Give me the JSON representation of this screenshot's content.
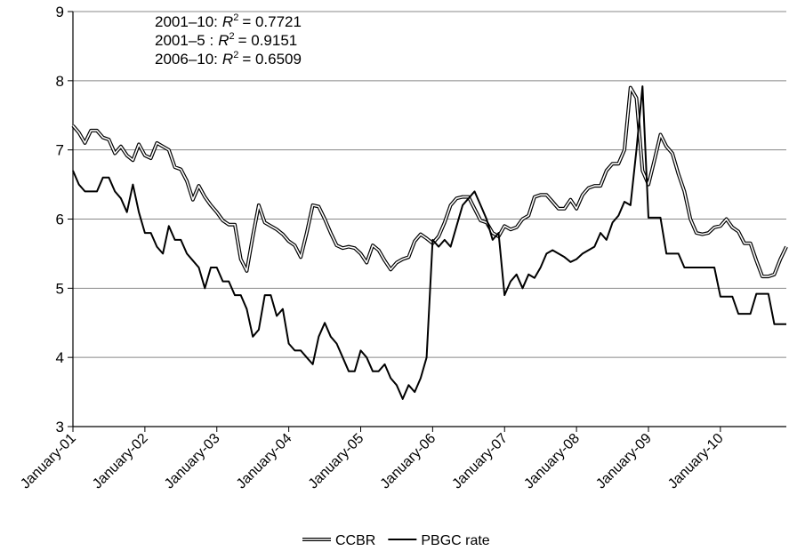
{
  "chart_data": {
    "type": "line",
    "categories": [
      "January-01",
      null,
      null,
      null,
      null,
      null,
      null,
      null,
      null,
      null,
      null,
      null,
      "January-02",
      null,
      null,
      null,
      null,
      null,
      null,
      null,
      null,
      null,
      null,
      null,
      "January-03",
      null,
      null,
      null,
      null,
      null,
      null,
      null,
      null,
      null,
      null,
      null,
      "January-04",
      null,
      null,
      null,
      null,
      null,
      null,
      null,
      null,
      null,
      null,
      null,
      "January-05",
      null,
      null,
      null,
      null,
      null,
      null,
      null,
      null,
      null,
      null,
      null,
      "January-06",
      null,
      null,
      null,
      null,
      null,
      null,
      null,
      null,
      null,
      null,
      null,
      "January-07",
      null,
      null,
      null,
      null,
      null,
      null,
      null,
      null,
      null,
      null,
      null,
      "January-08",
      null,
      null,
      null,
      null,
      null,
      null,
      null,
      null,
      null,
      null,
      null,
      "January-09",
      null,
      null,
      null,
      null,
      null,
      null,
      null,
      null,
      null,
      null,
      null,
      "January-10",
      null,
      null,
      null,
      null,
      null,
      null,
      null,
      null,
      null,
      null,
      null
    ],
    "series": [
      {
        "name": "CCBR",
        "color": "#000000",
        "style": "double",
        "values": [
          7.35,
          7.25,
          7.1,
          7.28,
          7.28,
          7.18,
          7.15,
          6.95,
          7.05,
          6.92,
          6.85,
          7.08,
          6.92,
          6.88,
          7.1,
          7.05,
          7.0,
          6.75,
          6.72,
          6.55,
          6.28,
          6.48,
          6.32,
          6.2,
          6.1,
          5.98,
          5.92,
          5.92,
          5.42,
          5.25,
          5.75,
          6.2,
          5.95,
          5.9,
          5.85,
          5.78,
          5.68,
          5.62,
          5.45,
          5.8,
          6.2,
          6.18,
          6.0,
          5.8,
          5.62,
          5.58,
          5.6,
          5.58,
          5.5,
          5.37,
          5.62,
          5.55,
          5.4,
          5.27,
          5.37,
          5.42,
          5.45,
          5.68,
          5.78,
          5.72,
          5.65,
          5.75,
          5.95,
          6.2,
          6.3,
          6.32,
          6.32,
          6.15,
          5.98,
          5.95,
          5.8,
          5.75,
          5.9,
          5.85,
          5.88,
          6.0,
          6.05,
          6.32,
          6.35,
          6.35,
          6.25,
          6.15,
          6.15,
          6.28,
          6.15,
          6.35,
          6.45,
          6.48,
          6.48,
          6.7,
          6.8,
          6.8,
          7.0,
          7.9,
          7.75,
          6.7,
          6.5,
          6.85,
          7.22,
          7.05,
          6.95,
          6.65,
          6.4,
          6.0,
          5.8,
          5.78,
          5.8,
          5.88,
          5.9,
          6.0,
          5.88,
          5.82,
          5.65,
          5.65,
          5.4,
          5.17,
          5.17,
          5.2,
          5.42,
          5.6
        ]
      },
      {
        "name": "PBGC rate",
        "color": "#000000",
        "style": "single",
        "values": [
          6.7,
          6.5,
          6.4,
          6.4,
          6.4,
          6.6,
          6.6,
          6.4,
          6.3,
          6.1,
          6.5,
          6.1,
          5.8,
          5.8,
          5.6,
          5.5,
          5.9,
          5.7,
          5.7,
          5.5,
          5.4,
          5.3,
          5.0,
          5.3,
          5.3,
          5.1,
          5.1,
          4.9,
          4.9,
          4.7,
          4.3,
          4.4,
          4.9,
          4.9,
          4.6,
          4.7,
          4.2,
          4.1,
          4.1,
          4.0,
          3.9,
          4.3,
          4.5,
          4.3,
          4.2,
          4.0,
          3.8,
          3.8,
          4.1,
          4.0,
          3.8,
          3.8,
          3.9,
          3.7,
          3.6,
          3.4,
          3.6,
          3.5,
          3.7,
          4.0,
          5.7,
          5.6,
          5.7,
          5.6,
          5.9,
          6.2,
          6.3,
          6.4,
          6.2,
          6.0,
          5.7,
          5.8,
          4.9,
          5.1,
          5.2,
          5.0,
          5.2,
          5.15,
          5.3,
          5.5,
          5.55,
          5.5,
          5.45,
          5.38,
          5.42,
          5.5,
          5.55,
          5.6,
          5.8,
          5.7,
          5.95,
          6.05,
          6.25,
          6.2,
          7.0,
          7.92,
          6.02,
          6.02,
          6.02,
          5.5,
          5.5,
          5.5,
          5.3,
          5.3,
          5.3,
          5.3,
          5.3,
          5.3,
          4.88,
          4.88,
          4.88,
          4.63,
          4.63,
          4.63,
          4.92,
          4.92,
          4.92,
          4.48,
          4.48,
          4.48
        ]
      }
    ],
    "ylim": [
      3,
      9
    ],
    "yticks": [
      3,
      4,
      5,
      6,
      7,
      8,
      9
    ],
    "grid": true,
    "legend": "bottom",
    "annotations": [
      {
        "label": "2001–10:",
        "symbol": "R",
        "power": "2",
        "value": "= 0.7721"
      },
      {
        "label": "2001–5 :",
        "symbol": "R",
        "power": "2",
        "value": "= 0.9151"
      },
      {
        "label": "2006–10:",
        "symbol": "R",
        "power": "2",
        "value": "= 0.6509"
      }
    ]
  }
}
